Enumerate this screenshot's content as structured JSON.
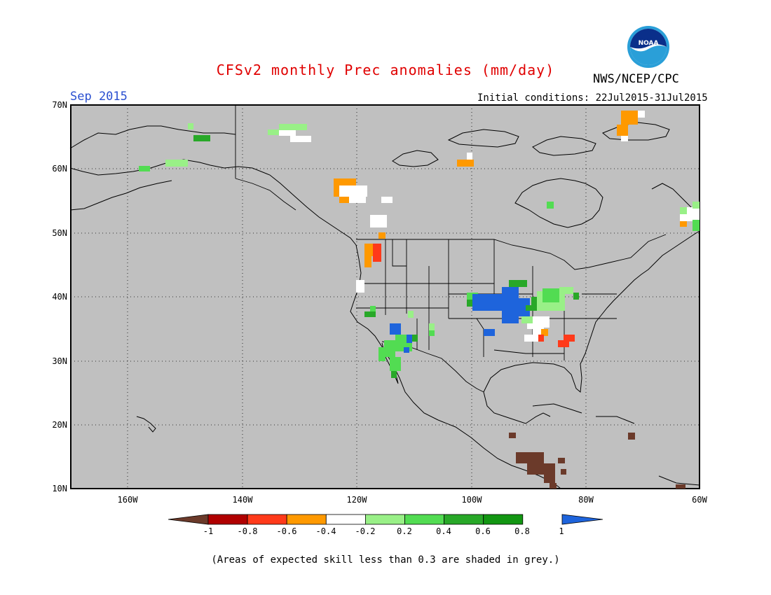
{
  "title": "CFSv2 monthly Prec anomalies (mm/day)",
  "valid_month": "Sep 2015",
  "agency": "NWS/NCEP/CPC",
  "initial_conditions": "Initial conditions: 22Jul2015-31Jul2015",
  "footnote": "(Areas of expected skill less than 0.3 are shaded in grey.)",
  "logo_text": "NOAA",
  "map": {
    "lat_labels": [
      "70N",
      "60N",
      "50N",
      "40N",
      "30N",
      "20N",
      "10N"
    ],
    "lon_labels": [
      "160W",
      "140W",
      "120W",
      "100W",
      "80W",
      "60W"
    ],
    "extent": {
      "lon_min": -170,
      "lon_max": -60,
      "lat_min": 10,
      "lat_max": 70
    },
    "background_color": "#c0c0c0"
  },
  "colorbar": {
    "labels": [
      "-1",
      "-0.8",
      "-0.6",
      "-0.4",
      "-0.2",
      "0.2",
      "0.4",
      "0.6",
      "0.8",
      "1"
    ],
    "colors": [
      "#6b3a2a",
      "#b00000",
      "#ff3a1a",
      "#ff9900",
      "#ffffff",
      "#99f087",
      "#52dc52",
      "#28a828",
      "#129612",
      "#1e64dc"
    ]
  }
}
